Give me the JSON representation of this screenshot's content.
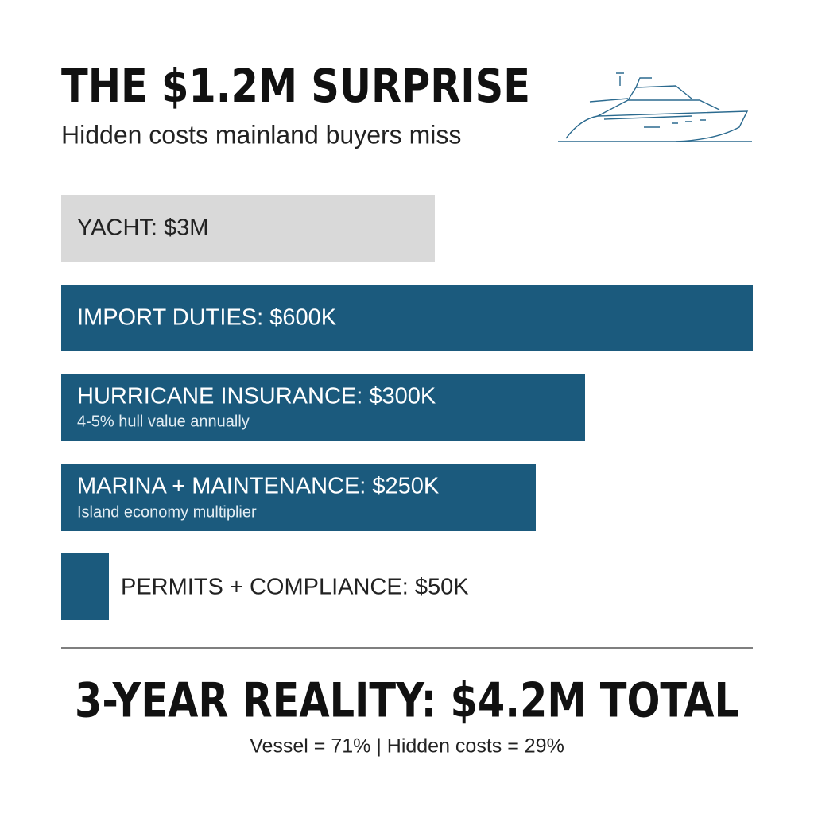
{
  "header": {
    "title": "THE $1.2M SURPRISE",
    "subtitle": "Hidden costs mainland buyers miss"
  },
  "items": [
    {
      "label": "YACHT: $3M"
    },
    {
      "label": "IMPORT DUTIES: $600K"
    },
    {
      "label": "HURRICANE INSURANCE: $300K",
      "note": "4-5% hull value annually"
    },
    {
      "label": "MARINA + MAINTENANCE: $250K",
      "note": "Island economy multiplier"
    },
    {
      "label": "PERMITS + COMPLIANCE: $50K"
    }
  ],
  "footer": {
    "headline": "3-YEAR REALITY: $4.2M TOTAL",
    "note": "Vessel = 71% | Hidden costs = 29%"
  }
}
